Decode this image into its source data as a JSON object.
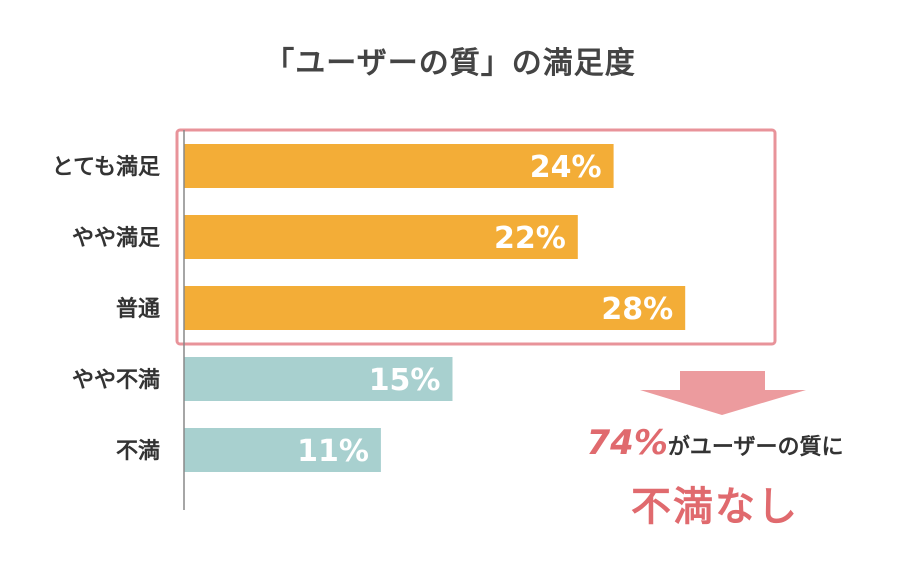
{
  "chart_data": {
    "type": "bar",
    "orientation": "horizontal",
    "title": "「ユーザーの質」の満足度",
    "categories": [
      "とても満足",
      "やや満足",
      "普通",
      "やや不満",
      "不満"
    ],
    "values": [
      24,
      22,
      28,
      15,
      11
    ],
    "value_labels": [
      "24%",
      "22%",
      "28%",
      "15%",
      "11%"
    ],
    "xlim": [
      0,
      40
    ],
    "grid": false,
    "colors": {
      "satisfied": "#f3ad37",
      "dissatisfied": "#a8d0cf",
      "highlight": "#e8939a",
      "arrow": "#ec9b9e",
      "axis": "#888888",
      "label": "#333333"
    },
    "bar_colors": [
      "#f3ad37",
      "#f3ad37",
      "#f3ad37",
      "#a8d0cf",
      "#a8d0cf"
    ],
    "highlight_categories": [
      "とても満足",
      "やや満足",
      "普通"
    ]
  },
  "conclusion": {
    "percent": "74%",
    "text": "がユーザーの質に",
    "emphasis": "不満なし"
  }
}
